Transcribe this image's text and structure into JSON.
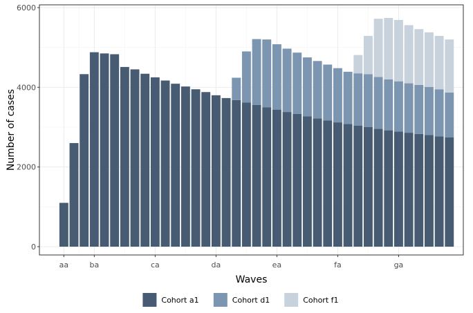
{
  "chart_data": {
    "type": "bar",
    "stacked": true,
    "title": "",
    "xlabel": "Waves",
    "ylabel": "Number of cases",
    "ylim": [
      0,
      6000
    ],
    "yticks": [
      0,
      2000,
      4000,
      6000
    ],
    "xtick_labels": [
      {
        "label": "aa",
        "index": 0
      },
      {
        "label": "ba",
        "index": 3
      },
      {
        "label": "ca",
        "index": 9
      },
      {
        "label": "da",
        "index": 15
      },
      {
        "label": "ea",
        "index": 21
      },
      {
        "label": "fa",
        "index": 27
      },
      {
        "label": "ga",
        "index": 33
      }
    ],
    "grid": true,
    "legend_position": "bottom",
    "series": [
      {
        "name": "Cohort a1",
        "color": "#475c72",
        "values": [
          1100,
          2600,
          4330,
          4880,
          4850,
          4830,
          4510,
          4450,
          4340,
          4250,
          4170,
          4090,
          4020,
          3950,
          3880,
          3800,
          3730,
          3680,
          3620,
          3560,
          3500,
          3440,
          3380,
          3330,
          3270,
          3220,
          3170,
          3120,
          3080,
          3040,
          3000,
          2960,
          2920,
          2890,
          2860,
          2830,
          2800,
          2770,
          2740
        ]
      },
      {
        "name": "Cohort d1",
        "color": "#7c95b0",
        "values": [
          0,
          0,
          0,
          0,
          0,
          0,
          0,
          0,
          0,
          0,
          0,
          0,
          0,
          0,
          0,
          0,
          0,
          560,
          1280,
          1650,
          1700,
          1640,
          1590,
          1540,
          1480,
          1440,
          1400,
          1360,
          1310,
          1310,
          1330,
          1300,
          1280,
          1260,
          1240,
          1230,
          1210,
          1180,
          1130
        ]
      },
      {
        "name": "Cohort f1",
        "color": "#c8d2dd",
        "values": [
          0,
          0,
          0,
          0,
          0,
          0,
          0,
          0,
          0,
          0,
          0,
          0,
          0,
          0,
          0,
          0,
          0,
          0,
          0,
          0,
          0,
          0,
          0,
          0,
          0,
          0,
          0,
          0,
          0,
          460,
          960,
          1460,
          1540,
          1540,
          1460,
          1400,
          1370,
          1340,
          1330
        ]
      }
    ]
  }
}
